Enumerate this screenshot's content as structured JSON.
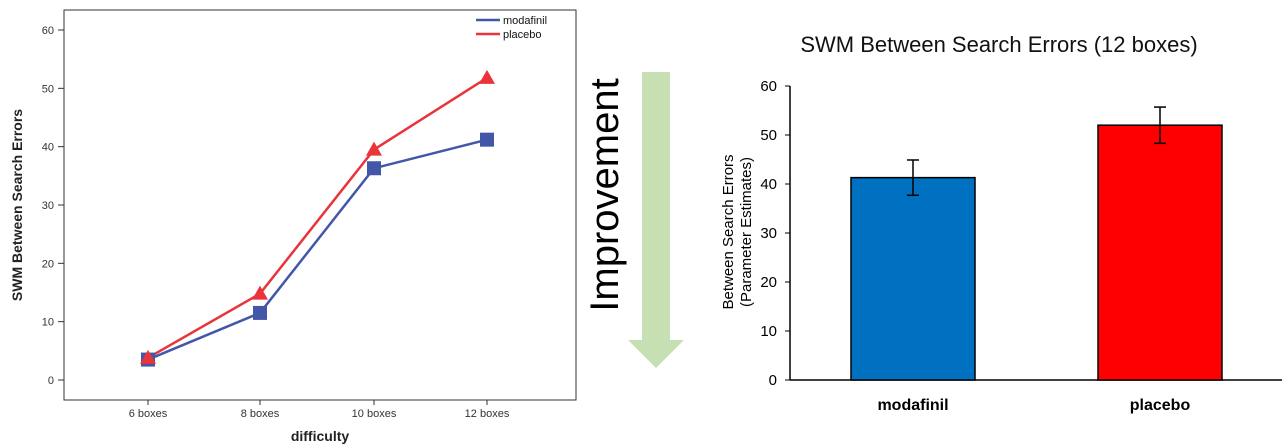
{
  "chart_data": [
    {
      "type": "line",
      "title": "",
      "xlabel": "difficulty",
      "ylabel": "SWM Between Search Errors",
      "categories": [
        "6 boxes",
        "8 boxes",
        "10 boxes",
        "12 boxes"
      ],
      "ylim": [
        0,
        60
      ],
      "yticks": [
        "0",
        "10",
        "20",
        "30",
        "40",
        "50",
        "60"
      ],
      "grid": false,
      "legend_position": "top-right",
      "series": [
        {
          "name": "modafinil",
          "values": [
            3.5,
            11.5,
            36.3,
            41.2
          ],
          "color": "#4257a8",
          "marker": "square"
        },
        {
          "name": "placebo",
          "values": [
            3.8,
            14.8,
            39.5,
            51.8
          ],
          "color": "#e8343a",
          "marker": "triangle"
        }
      ]
    },
    {
      "type": "bar",
      "title": "SWM Between Search Errors (12 boxes)",
      "ylabel": "Between Search Errors",
      "ylabel2": "(Parameter Estimates)",
      "categories": [
        "modafinil",
        "placebo"
      ],
      "values": [
        41.3,
        52.0
      ],
      "errors": [
        3.6,
        3.7
      ],
      "colors": [
        "#0070c0",
        "#ff0000"
      ],
      "ylim": [
        0,
        60
      ],
      "yticks": [
        "0",
        "10",
        "20",
        "30",
        "40",
        "50",
        "60"
      ],
      "grid": false
    }
  ],
  "annotation": {
    "label": "Improvement",
    "arrow_color": "#c6e0b4"
  }
}
